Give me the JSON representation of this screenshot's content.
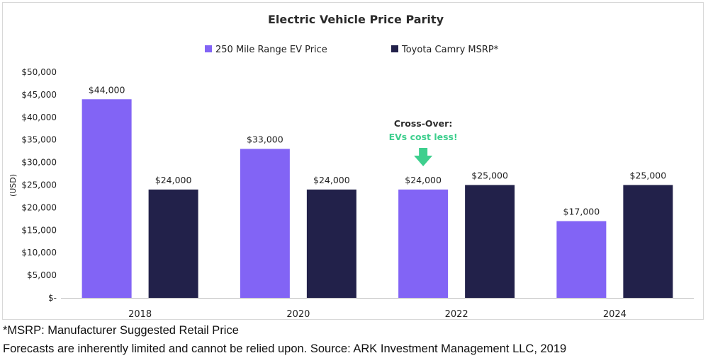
{
  "chart_data": {
    "type": "bar",
    "title": "Electric Vehicle Price Parity",
    "categories": [
      "2018",
      "2020",
      "2022",
      "2024"
    ],
    "series": [
      {
        "name": "250 Mile Range EV Price",
        "color": "#8264f5",
        "values": [
          44000,
          33000,
          24000,
          17000
        ],
        "labels": [
          "$44,000",
          "$33,000",
          "$24,000",
          "$17,000"
        ]
      },
      {
        "name": "Toyota Camry MSRP*",
        "color": "#22214a",
        "values": [
          24000,
          24000,
          25000,
          25000
        ],
        "labels": [
          "$24,000",
          "$24,000",
          "$25,000",
          "$25,000"
        ]
      }
    ],
    "xlabel": "",
    "ylabel": "(USD)",
    "ylim": [
      0,
      50000
    ],
    "yticks": [
      0,
      5000,
      10000,
      15000,
      20000,
      25000,
      30000,
      35000,
      40000,
      45000,
      50000
    ],
    "ytick_labels": [
      "$-",
      "$5,000",
      "$10,000",
      "$15,000",
      "$20,000",
      "$25,000",
      "$30,000",
      "$35,000",
      "$40,000",
      "$45,000",
      "$50,000"
    ],
    "grid": false,
    "legend": "top-center",
    "annotation": {
      "category": "2022",
      "line1": "Cross-Over:",
      "line2": "EVs cost less!",
      "line1_color": "#2b2b2b",
      "line2_color": "#3ecf8e",
      "arrow_color": "#3ecf8e",
      "icon": "down-arrow-icon"
    }
  },
  "footnotes": {
    "line1": "*MSRP: Manufacturer Suggested Retail Price",
    "line2": "Forecasts are inherently limited and cannot be relied upon. Source: ARK Investment Management LLC, 2019"
  }
}
